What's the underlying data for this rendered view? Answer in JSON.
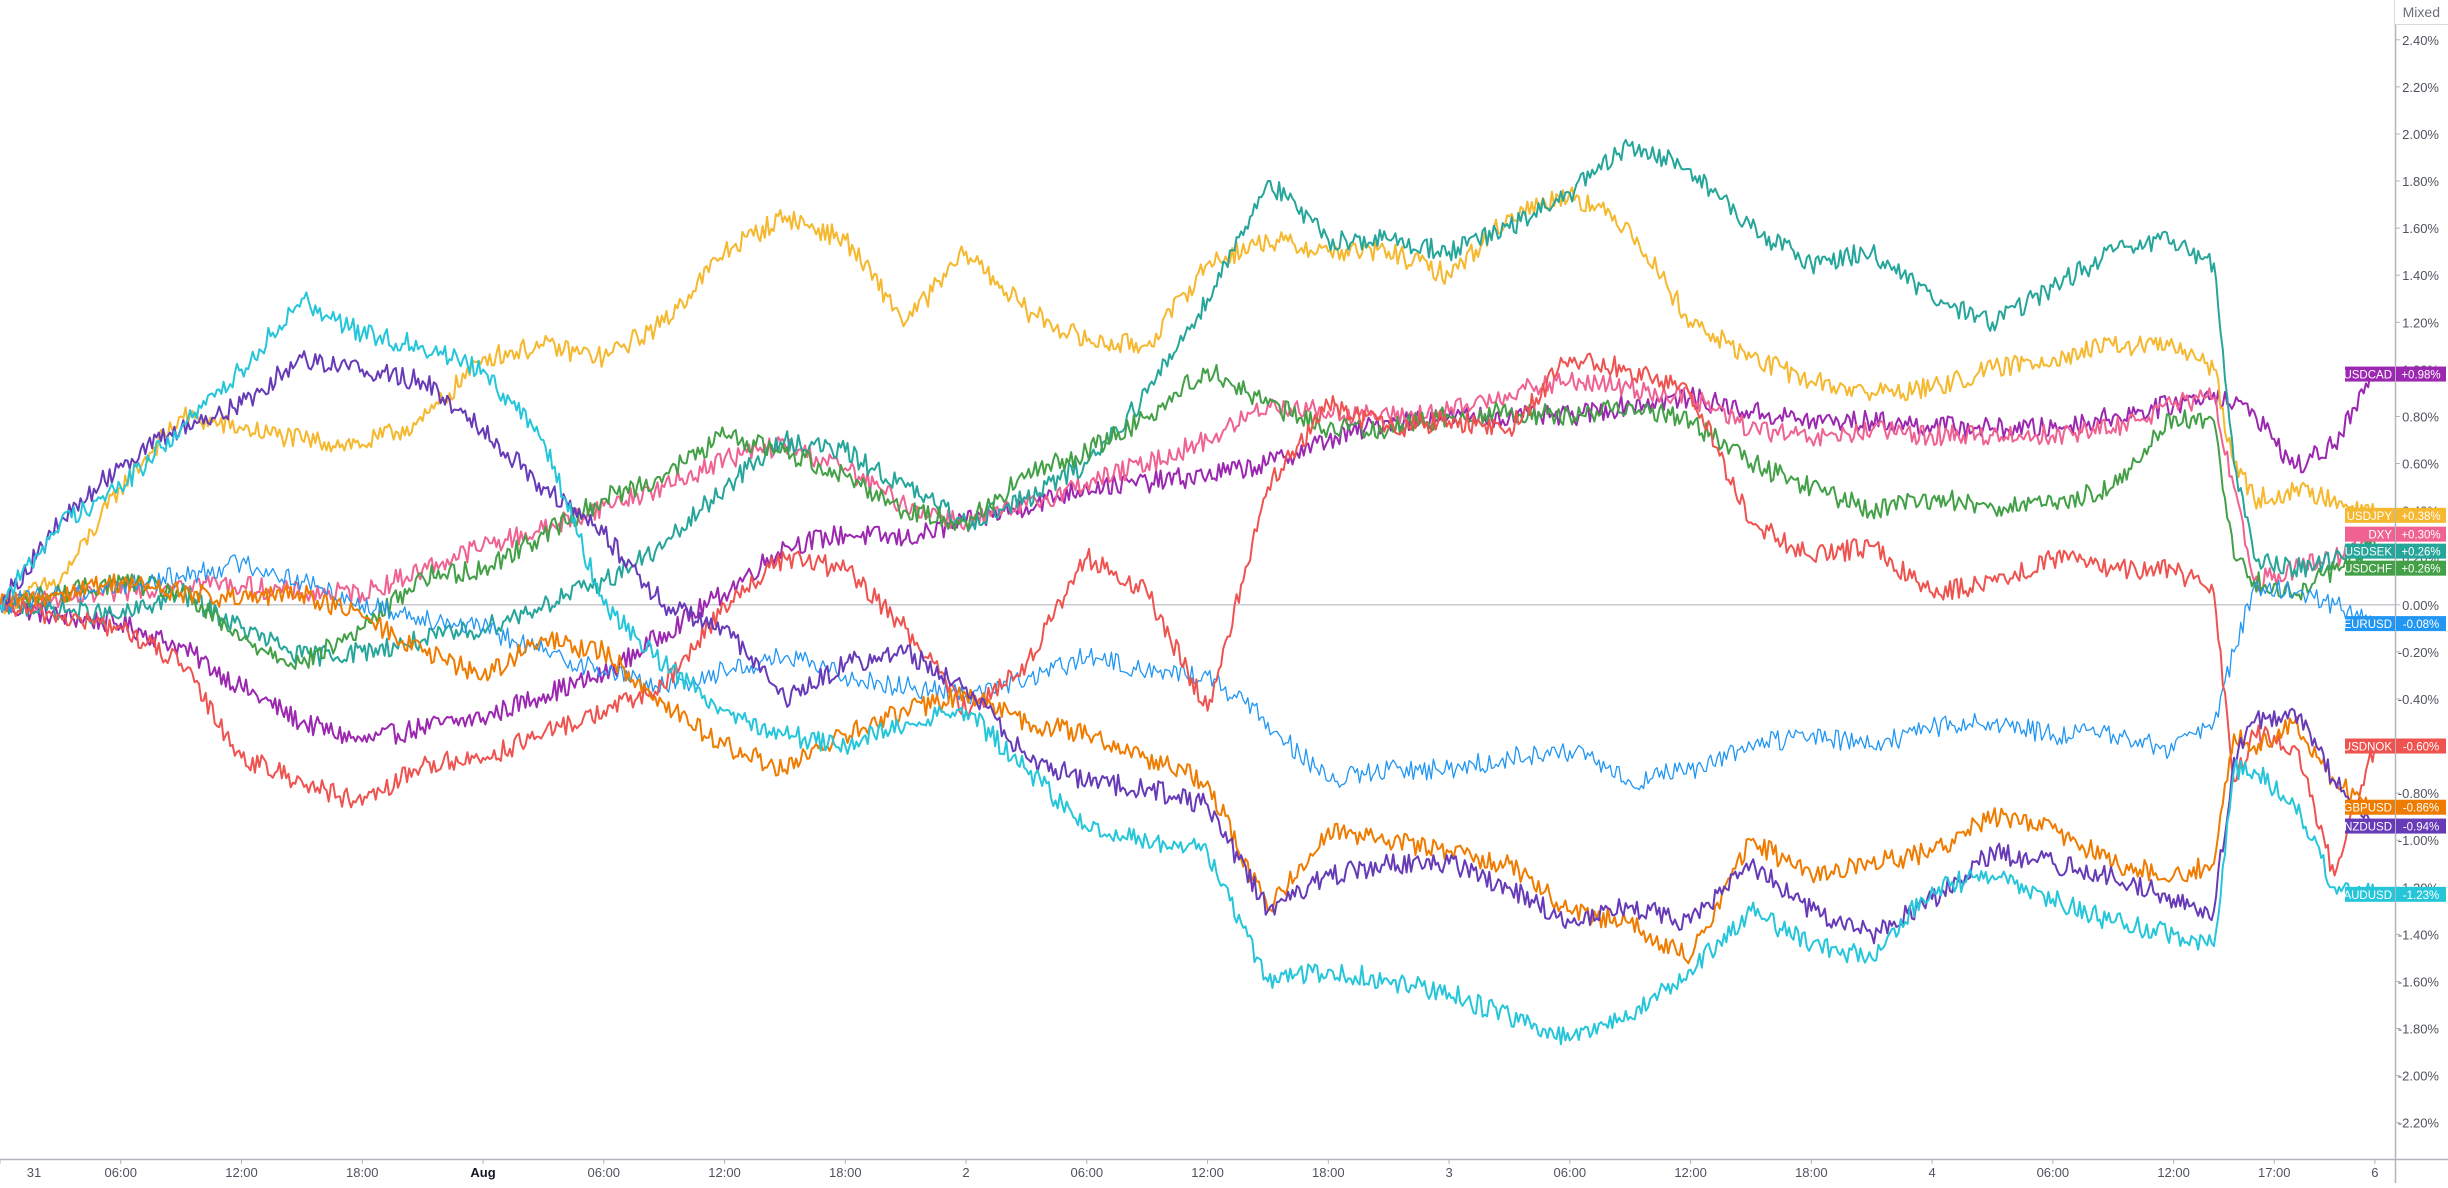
{
  "scale_mode": "Mixed",
  "chart_data": {
    "type": "line",
    "title": "",
    "xlabel": "",
    "ylabel": "",
    "y_unit": "%",
    "ylim": [
      -2.35,
      2.45
    ],
    "y_ticks": [
      "2.40%",
      "2.20%",
      "2.00%",
      "1.80%",
      "1.60%",
      "1.40%",
      "1.20%",
      "1.00%",
      "0.80%",
      "0.60%",
      "0.40%",
      "0.20%",
      "0.00%",
      "-0.20%",
      "-0.40%",
      "-0.60%",
      "-0.80%",
      "-1.00%",
      "-1.20%",
      "-1.40%",
      "-1.60%",
      "-1.80%",
      "-2.00%",
      "-2.20%"
    ],
    "x_ticks": [
      "31",
      "06:00",
      "12:00",
      "18:00",
      "Aug",
      "06:00",
      "12:00",
      "18:00",
      "2",
      "06:00",
      "12:00",
      "18:00",
      "3",
      "06:00",
      "12:00",
      "18:00",
      "4",
      "06:00",
      "12:00",
      "17:00",
      "6"
    ],
    "x_tick_hours": [
      0,
      6,
      12,
      18,
      24,
      30,
      36,
      42,
      48,
      54,
      60,
      66,
      72,
      78,
      84,
      90,
      96,
      102,
      108,
      113,
      118
    ],
    "x_bold_ticks": [
      "Aug"
    ],
    "xlim_hours": [
      0,
      119
    ],
    "baseline": 0.0,
    "grid": false,
    "legend": "right-axis labels",
    "x_hours": [
      0,
      3,
      6,
      9,
      12,
      15,
      18,
      21,
      24,
      27,
      30,
      33,
      36,
      39,
      42,
      45,
      48,
      51,
      54,
      57,
      60,
      63,
      66,
      69,
      72,
      75,
      78,
      81,
      84,
      87,
      90,
      93,
      96,
      99,
      102,
      105,
      108,
      110,
      111,
      112,
      114,
      116,
      118
    ],
    "series": [
      {
        "name": "USDCAD",
        "value_label": "+0.98%",
        "color": "#9c27b0",
        "values": [
          0.0,
          -0.05,
          -0.08,
          -0.18,
          -0.35,
          -0.5,
          -0.58,
          -0.52,
          -0.48,
          -0.38,
          -0.3,
          -0.12,
          0.05,
          0.25,
          0.3,
          0.28,
          0.35,
          0.42,
          0.5,
          0.52,
          0.55,
          0.6,
          0.7,
          0.78,
          0.8,
          0.8,
          0.8,
          0.85,
          0.88,
          0.82,
          0.78,
          0.78,
          0.76,
          0.75,
          0.75,
          0.8,
          0.85,
          0.9,
          0.85,
          0.82,
          0.58,
          0.68,
          0.98
        ]
      },
      {
        "name": "USDJPY",
        "value_label": "+0.38%",
        "color": "#f5b82e",
        "values": [
          0.0,
          0.1,
          0.5,
          0.8,
          0.75,
          0.7,
          0.68,
          0.78,
          1.05,
          1.1,
          1.05,
          1.2,
          1.5,
          1.65,
          1.55,
          1.2,
          1.5,
          1.25,
          1.12,
          1.1,
          1.45,
          1.55,
          1.5,
          1.5,
          1.4,
          1.65,
          1.75,
          1.6,
          1.2,
          1.05,
          0.95,
          0.9,
          0.92,
          1.0,
          1.05,
          1.1,
          1.1,
          1.0,
          0.6,
          0.45,
          0.48,
          0.46,
          0.38
        ]
      },
      {
        "name": "DXY",
        "value_label": "+0.30%",
        "color": "#f06292",
        "values": [
          0.0,
          0.02,
          0.05,
          0.1,
          0.08,
          0.05,
          0.05,
          0.15,
          0.25,
          0.32,
          0.42,
          0.5,
          0.62,
          0.68,
          0.58,
          0.42,
          0.35,
          0.42,
          0.52,
          0.6,
          0.7,
          0.85,
          0.82,
          0.8,
          0.82,
          0.9,
          0.95,
          0.92,
          0.88,
          0.75,
          0.7,
          0.74,
          0.72,
          0.72,
          0.72,
          0.75,
          0.85,
          0.88,
          0.5,
          0.1,
          0.15,
          0.2,
          0.3
        ]
      },
      {
        "name": "USDSEK",
        "value_label": "+0.26%",
        "color": "#26a69a",
        "values": [
          0.0,
          -0.02,
          -0.05,
          0.05,
          -0.1,
          -0.22,
          -0.2,
          -0.15,
          -0.1,
          0.0,
          0.1,
          0.25,
          0.5,
          0.7,
          0.65,
          0.5,
          0.35,
          0.45,
          0.6,
          0.9,
          1.3,
          1.8,
          1.55,
          1.55,
          1.5,
          1.6,
          1.75,
          1.95,
          1.85,
          1.6,
          1.45,
          1.5,
          1.3,
          1.2,
          1.35,
          1.5,
          1.55,
          1.45,
          0.6,
          0.2,
          0.15,
          0.2,
          0.26
        ]
      },
      {
        "name": "USDCHF",
        "value_label": "+0.26%",
        "color": "#43a047",
        "values": [
          0.0,
          0.05,
          0.1,
          0.05,
          -0.15,
          -0.25,
          -0.1,
          0.12,
          0.15,
          0.3,
          0.45,
          0.55,
          0.72,
          0.65,
          0.55,
          0.4,
          0.35,
          0.55,
          0.65,
          0.8,
          1.0,
          0.85,
          0.75,
          0.75,
          0.8,
          0.82,
          0.8,
          0.85,
          0.78,
          0.6,
          0.5,
          0.4,
          0.45,
          0.42,
          0.42,
          0.5,
          0.8,
          0.78,
          0.2,
          0.1,
          0.05,
          0.15,
          0.26
        ]
      },
      {
        "name": "EURUSD",
        "value_label": "-0.08%",
        "color": "#2196f3",
        "values": [
          0.0,
          0.05,
          0.08,
          0.12,
          0.18,
          0.1,
          0.0,
          -0.05,
          -0.1,
          -0.2,
          -0.28,
          -0.35,
          -0.28,
          -0.22,
          -0.3,
          -0.35,
          -0.38,
          -0.32,
          -0.22,
          -0.28,
          -0.3,
          -0.5,
          -0.75,
          -0.7,
          -0.7,
          -0.65,
          -0.62,
          -0.75,
          -0.7,
          -0.6,
          -0.55,
          -0.6,
          -0.52,
          -0.5,
          -0.55,
          -0.55,
          -0.62,
          -0.5,
          -0.2,
          0.08,
          0.05,
          0.0,
          -0.08
        ]
      },
      {
        "name": "USDNOK",
        "value_label": "-0.60%",
        "color": "#ef5350",
        "values": [
          0.0,
          -0.05,
          -0.1,
          -0.25,
          -0.65,
          -0.75,
          -0.85,
          -0.68,
          -0.65,
          -0.55,
          -0.45,
          -0.35,
          0.0,
          0.2,
          0.15,
          -0.1,
          -0.45,
          -0.25,
          0.2,
          0.05,
          -0.45,
          0.5,
          0.85,
          0.75,
          0.78,
          0.75,
          1.05,
          1.0,
          0.9,
          0.35,
          0.2,
          0.25,
          0.05,
          0.1,
          0.2,
          0.15,
          0.15,
          0.05,
          -0.75,
          -0.55,
          -0.6,
          -1.15,
          -0.6
        ]
      },
      {
        "name": "GBPUSD",
        "value_label": "-0.86%",
        "color": "#ef7c00",
        "values": [
          0.0,
          0.05,
          0.1,
          0.05,
          0.02,
          0.05,
          -0.05,
          -0.2,
          -0.3,
          -0.15,
          -0.2,
          -0.42,
          -0.6,
          -0.7,
          -0.55,
          -0.45,
          -0.38,
          -0.5,
          -0.55,
          -0.65,
          -0.75,
          -1.3,
          -0.95,
          -1.0,
          -1.05,
          -1.1,
          -1.3,
          -1.35,
          -1.5,
          -1.0,
          -1.15,
          -1.1,
          -1.05,
          -0.9,
          -0.95,
          -1.1,
          -1.15,
          -1.1,
          -0.55,
          -0.6,
          -0.5,
          -0.75,
          -0.86
        ]
      },
      {
        "name": "NZDUSD",
        "value_label": "-0.94%",
        "color": "#673ab7",
        "values": [
          0.0,
          0.35,
          0.6,
          0.75,
          0.85,
          1.05,
          1.0,
          0.95,
          0.75,
          0.5,
          0.3,
          0.0,
          -0.1,
          -0.4,
          -0.25,
          -0.2,
          -0.35,
          -0.65,
          -0.75,
          -0.78,
          -0.85,
          -1.3,
          -1.15,
          -1.1,
          -1.1,
          -1.2,
          -1.35,
          -1.28,
          -1.35,
          -1.1,
          -1.3,
          -1.4,
          -1.25,
          -1.05,
          -1.1,
          -1.15,
          -1.25,
          -1.3,
          -0.65,
          -0.5,
          -0.45,
          -0.75,
          -0.94
        ]
      },
      {
        "name": "AUDUSD",
        "value_label": "-1.23%",
        "color": "#26c6da",
        "values": [
          0.0,
          0.35,
          0.5,
          0.75,
          1.0,
          1.3,
          1.15,
          1.1,
          1.0,
          0.7,
          0.0,
          -0.25,
          -0.45,
          -0.55,
          -0.6,
          -0.5,
          -0.45,
          -0.7,
          -0.95,
          -1.0,
          -1.05,
          -1.6,
          -1.55,
          -1.6,
          -1.65,
          -1.75,
          -1.85,
          -1.75,
          -1.55,
          -1.3,
          -1.45,
          -1.5,
          -1.2,
          -1.15,
          -1.25,
          -1.35,
          -1.4,
          -1.45,
          -0.7,
          -0.7,
          -0.85,
          -1.2,
          -1.23
        ]
      }
    ]
  }
}
